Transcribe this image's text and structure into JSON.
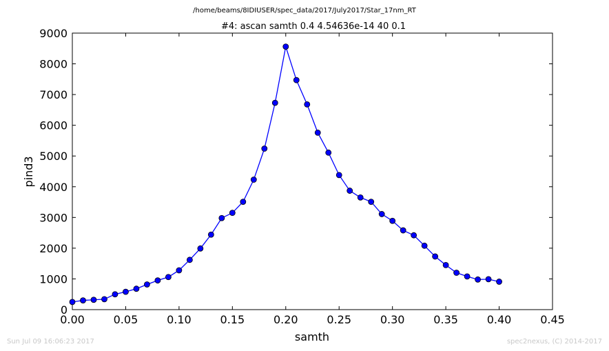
{
  "header": {
    "path_title": "/home/beams/8IDIUSER/spec_data/2017/July2017/Star_17nm_RT",
    "scan_title": "#4: ascan  samth 0.4 4.54636e-14  40 0.1"
  },
  "footer": {
    "timestamp": "Sun Jul 09 16:06:23 2017",
    "credit": "spec2nexus, (C) 2014-2017"
  },
  "colors": {
    "series": "#0000ff",
    "footer_text": "#c8c8c8"
  },
  "chart_data": {
    "type": "line",
    "title": "#4: ascan  samth 0.4 4.54636e-14  40 0.1",
    "xlabel": "samth",
    "ylabel": "pind3",
    "xlim": [
      0.0,
      0.45
    ],
    "ylim": [
      0,
      9000
    ],
    "xticks": [
      "0.00",
      "0.05",
      "0.10",
      "0.15",
      "0.20",
      "0.25",
      "0.30",
      "0.35",
      "0.40",
      "0.45"
    ],
    "yticks": [
      "0",
      "1000",
      "2000",
      "3000",
      "4000",
      "5000",
      "6000",
      "7000",
      "8000",
      "9000"
    ],
    "grid": false,
    "marker": "circle",
    "series": [
      {
        "x": [
          0.0,
          0.01,
          0.02,
          0.03,
          0.04,
          0.05,
          0.06,
          0.07,
          0.08,
          0.09,
          0.1,
          0.11,
          0.12,
          0.13,
          0.14,
          0.15,
          0.16,
          0.17,
          0.18,
          0.19,
          0.2,
          0.21,
          0.22,
          0.23,
          0.24,
          0.25,
          0.26,
          0.27,
          0.28,
          0.29,
          0.3,
          0.31,
          0.32,
          0.33,
          0.34,
          0.35,
          0.36,
          0.37,
          0.38,
          0.39,
          0.4
        ],
        "values": [
          250,
          300,
          320,
          340,
          500,
          580,
          680,
          820,
          950,
          1060,
          1280,
          1620,
          1990,
          2440,
          2980,
          3150,
          3510,
          4230,
          5240,
          6730,
          8560,
          7470,
          6680,
          5760,
          5110,
          4380,
          3870,
          3650,
          3510,
          3110,
          2890,
          2580,
          2420,
          2080,
          1730,
          1450,
          1200,
          1080,
          980,
          990,
          910
        ]
      }
    ]
  }
}
